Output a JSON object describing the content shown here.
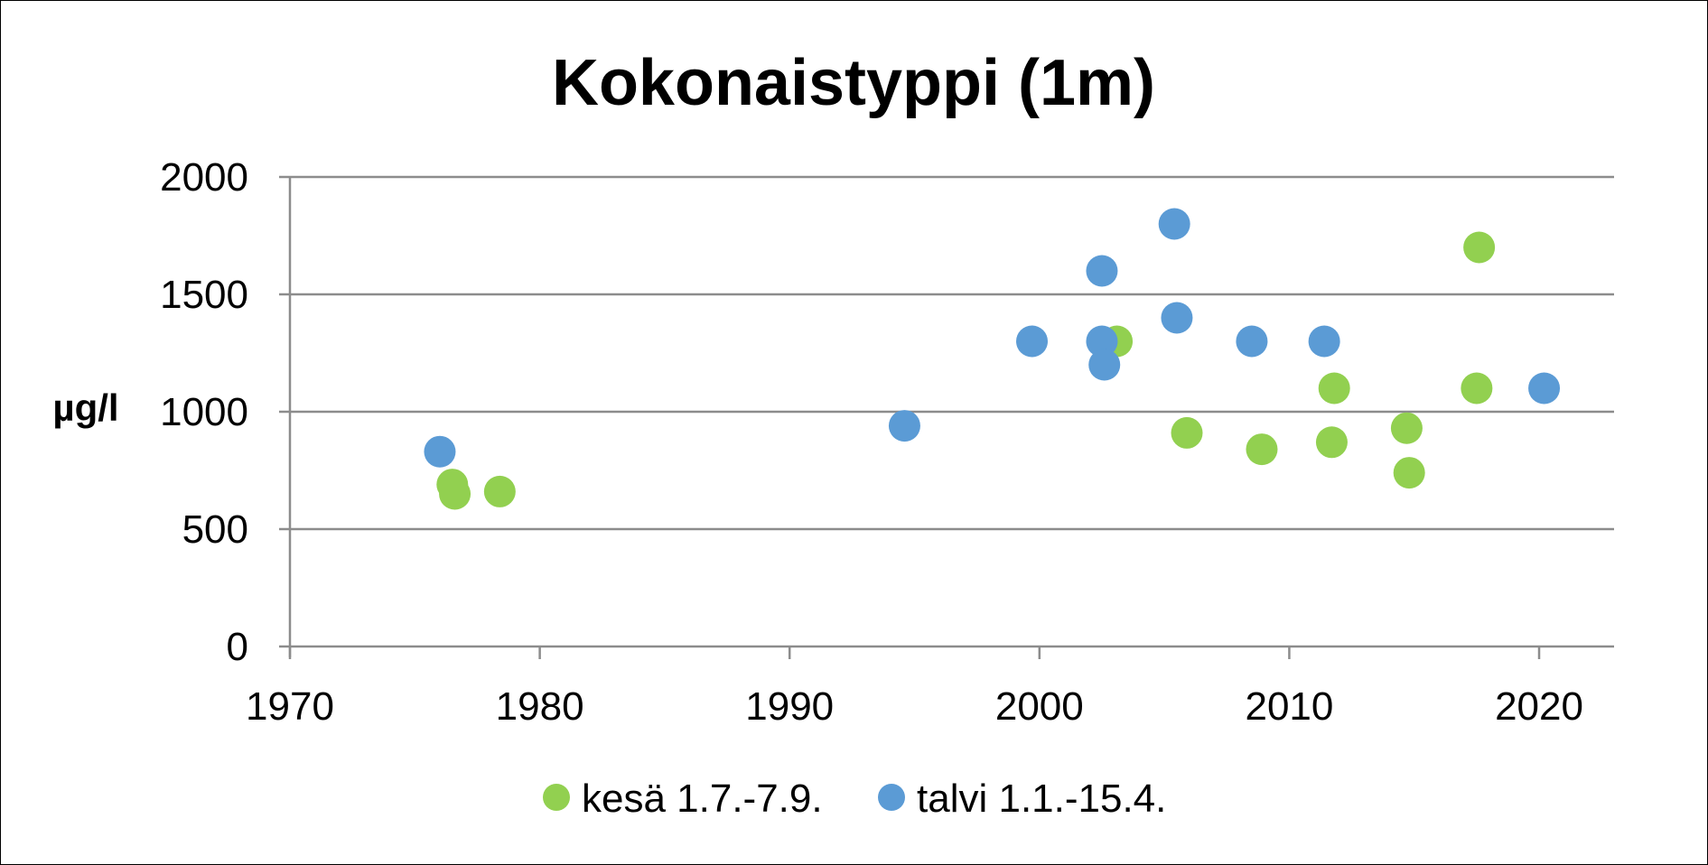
{
  "chart_data": {
    "type": "scatter",
    "title": "Kokonaistyppi (1m)",
    "xlabel": "",
    "ylabel": "µg/l",
    "xlim": [
      1970,
      2023
    ],
    "ylim": [
      0,
      2000
    ],
    "x_ticks": [
      1970,
      1980,
      1990,
      2000,
      2010,
      2020
    ],
    "y_ticks": [
      0,
      500,
      1000,
      1500,
      2000
    ],
    "grid": "horizontal",
    "legend": "bottom",
    "series": [
      {
        "name": "kesä 1.7.-7.9.",
        "color": "#92D050",
        "points": [
          {
            "x": 1976.5,
            "y": 690
          },
          {
            "x": 1976.6,
            "y": 650
          },
          {
            "x": 1978.4,
            "y": 660
          },
          {
            "x": 2003.1,
            "y": 1300
          },
          {
            "x": 2005.9,
            "y": 910
          },
          {
            "x": 2008.9,
            "y": 840
          },
          {
            "x": 2011.8,
            "y": 1100
          },
          {
            "x": 2011.7,
            "y": 870
          },
          {
            "x": 2014.7,
            "y": 930
          },
          {
            "x": 2014.8,
            "y": 740
          },
          {
            "x": 2017.6,
            "y": 1700
          },
          {
            "x": 2017.5,
            "y": 1100
          }
        ]
      },
      {
        "name": "talvi 1.1.-15.4.",
        "color": "#5B9BD5",
        "points": [
          {
            "x": 1976.0,
            "y": 830
          },
          {
            "x": 1994.6,
            "y": 940
          },
          {
            "x": 1999.7,
            "y": 1300
          },
          {
            "x": 2002.5,
            "y": 1600
          },
          {
            "x": 2002.5,
            "y": 1300
          },
          {
            "x": 2002.6,
            "y": 1200
          },
          {
            "x": 2005.4,
            "y": 1800
          },
          {
            "x": 2005.5,
            "y": 1400
          },
          {
            "x": 2008.5,
            "y": 1300
          },
          {
            "x": 2011.4,
            "y": 1300
          },
          {
            "x": 2020.2,
            "y": 1100
          }
        ]
      }
    ]
  }
}
